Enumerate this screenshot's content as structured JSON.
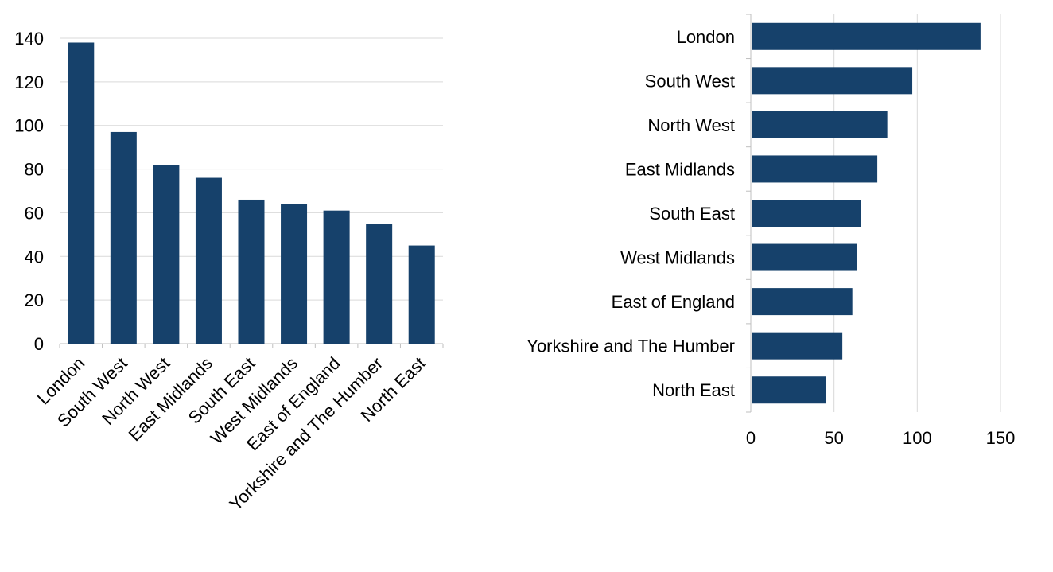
{
  "colors": {
    "bar": "#16416b",
    "grid": "#d9d9d9",
    "axis": "#bfbfbf",
    "text": "#000000"
  },
  "chart_data": [
    {
      "type": "bar",
      "orientation": "vertical",
      "categories": [
        "London",
        "South West",
        "North West",
        "East Midlands",
        "South East",
        "West Midlands",
        "East of England",
        "Yorkshire and The Humber",
        "North East"
      ],
      "series": [
        {
          "values": [
            138,
            97,
            82,
            76,
            66,
            64,
            61,
            55,
            45
          ]
        }
      ],
      "yticks": [
        0,
        20,
        40,
        60,
        80,
        100,
        120,
        140
      ],
      "ylim": [
        0,
        140
      ],
      "grid": true,
      "legend": "none"
    },
    {
      "type": "bar",
      "orientation": "horizontal",
      "categories": [
        "London",
        "South West",
        "North West",
        "East Midlands",
        "South East",
        "West Midlands",
        "East of England",
        "Yorkshire and The Humber",
        "North East"
      ],
      "series": [
        {
          "values": [
            138,
            97,
            82,
            76,
            66,
            64,
            61,
            55,
            45
          ]
        }
      ],
      "xticks": [
        0,
        50,
        100,
        150
      ],
      "xlim": [
        0,
        150
      ],
      "grid": true,
      "legend": "none"
    }
  ]
}
